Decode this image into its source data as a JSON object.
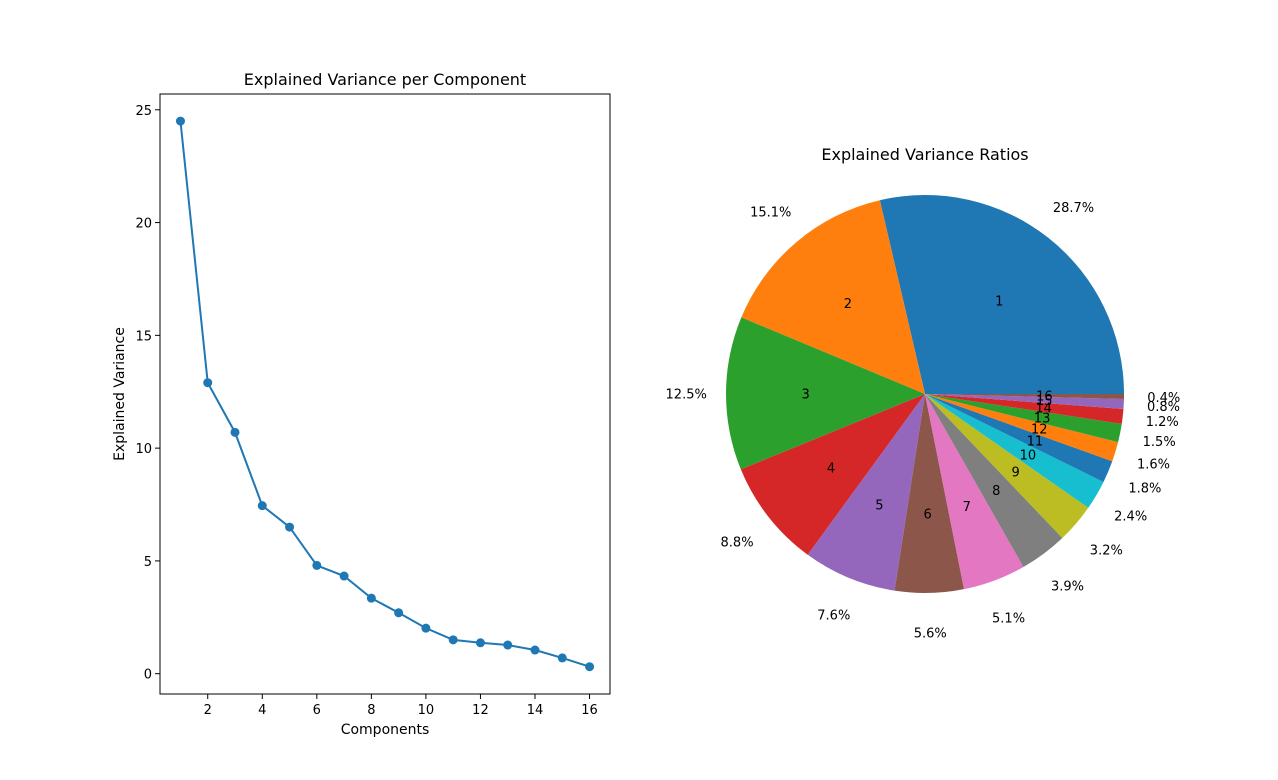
{
  "chart_data": [
    {
      "type": "line",
      "title": "Explained Variance per Component",
      "xlabel": "Components",
      "ylabel": "Explained Variance",
      "xlim": [
        0.25,
        16.75
      ],
      "ylim": [
        -0.9,
        25.7
      ],
      "xticks": [
        2,
        4,
        6,
        8,
        10,
        12,
        14,
        16
      ],
      "yticks": [
        0,
        5,
        10,
        15,
        20,
        25
      ],
      "grid": false,
      "color": "#1f77b4",
      "marker": "circle",
      "x": [
        1,
        2,
        3,
        4,
        5,
        6,
        7,
        8,
        9,
        10,
        11,
        12,
        13,
        14,
        15,
        16
      ],
      "values": [
        24.5,
        12.9,
        10.7,
        7.45,
        6.5,
        4.8,
        4.33,
        3.35,
        2.7,
        2.02,
        1.5,
        1.37,
        1.27,
        1.05,
        0.7,
        0.31
      ]
    },
    {
      "type": "pie",
      "title": "Explained Variance Ratios",
      "start_angle_deg": 0,
      "direction": "counterclockwise",
      "labels": [
        "1",
        "2",
        "3",
        "4",
        "5",
        "6",
        "7",
        "8",
        "9",
        "10",
        "11",
        "12",
        "13",
        "14",
        "15",
        "16"
      ],
      "percent_labels": [
        "28.7%",
        "15.1%",
        "12.5%",
        "8.8%",
        "7.6%",
        "5.6%",
        "5.1%",
        "3.9%",
        "3.2%",
        "2.4%",
        "1.8%",
        "1.6%",
        "1.5%",
        "1.2%",
        "0.8%",
        "0.4%"
      ],
      "values": [
        28.7,
        15.1,
        12.5,
        8.8,
        7.6,
        5.6,
        5.1,
        3.9,
        3.2,
        2.4,
        1.8,
        1.6,
        1.5,
        1.2,
        0.8,
        0.4
      ],
      "colors": [
        "#1f77b4",
        "#ff7f0e",
        "#2ca02c",
        "#d62728",
        "#9467bd",
        "#8c564b",
        "#e377c2",
        "#7f7f7f",
        "#bcbd22",
        "#17becf",
        "#1f77b4",
        "#ff7f0e",
        "#2ca02c",
        "#d62728",
        "#9467bd",
        "#8c564b"
      ]
    }
  ]
}
